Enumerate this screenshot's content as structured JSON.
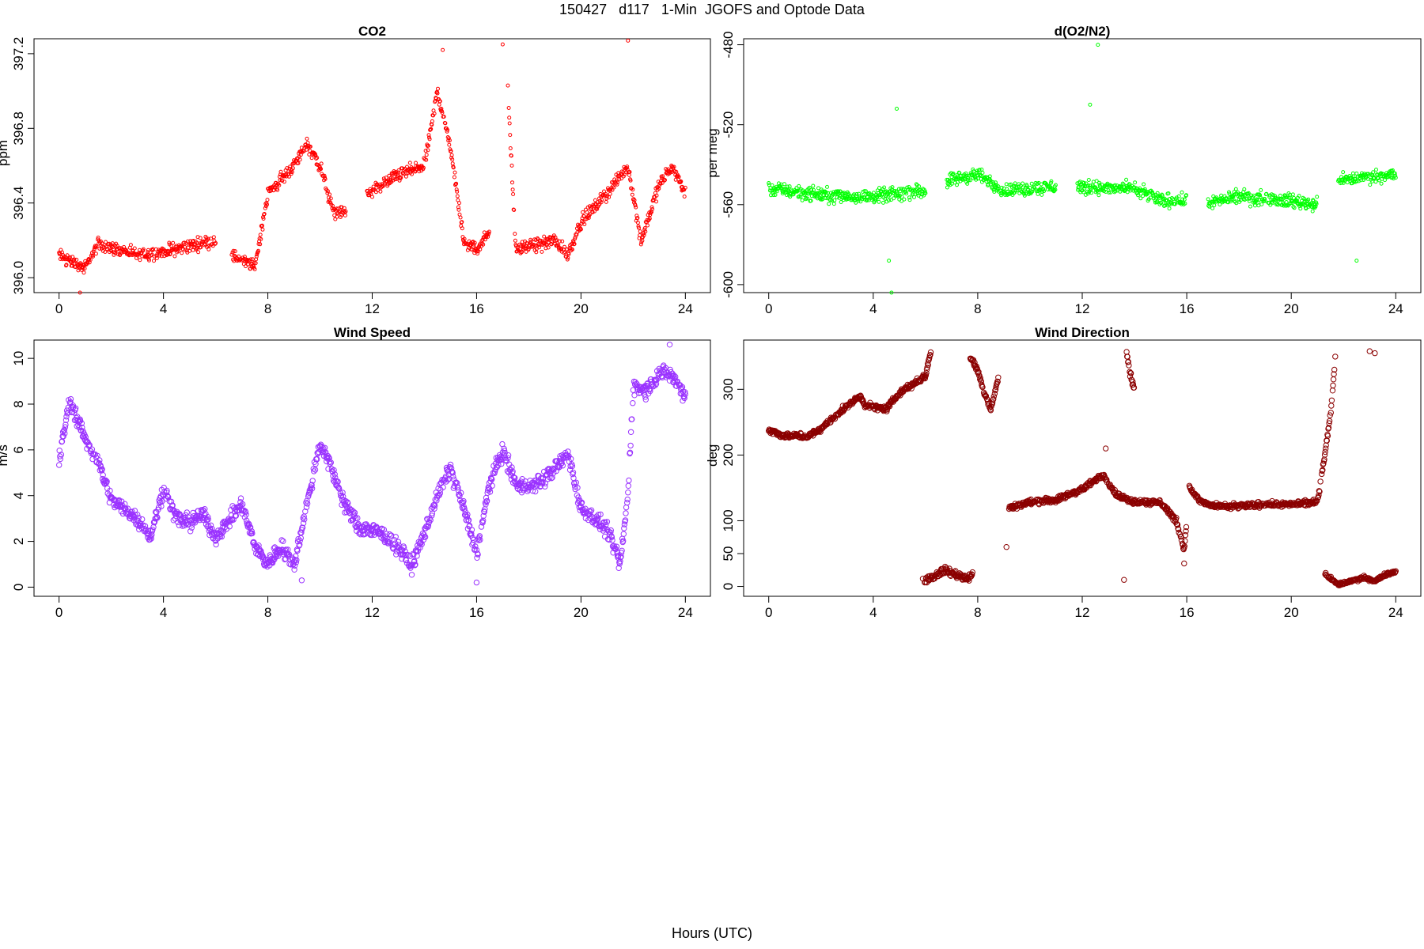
{
  "figure": {
    "title": "150427   d117   1-Min  JGOFS and Optode Data",
    "xlabel": "Hours (UTC)"
  },
  "chart_data": [
    {
      "type": "scatter",
      "title": "CO2",
      "ylabel": "ppm",
      "xlim": [
        -0.96,
        24.96
      ],
      "ylim": [
        395.92,
        397.28
      ],
      "xticks": [
        0,
        4,
        8,
        12,
        16,
        20,
        24
      ],
      "yticks": [
        396.0,
        396.4,
        396.8,
        397.2
      ],
      "ytick_labels": [
        "396.0",
        "396.4",
        "396.8",
        "397.2"
      ],
      "color": "#ff0000",
      "marker_radius": 2,
      "series": [
        {
          "gaps": [
            [
              6.0,
              6.6
            ],
            [
              11.0,
              11.8
            ],
            [
              16.5,
              17.2
            ]
          ],
          "anchors": [
            [
              0.0,
              396.12
            ],
            [
              1.0,
              396.05
            ],
            [
              1.5,
              396.18
            ],
            [
              3.0,
              396.12
            ],
            [
              4.0,
              396.14
            ],
            [
              6.0,
              396.2
            ],
            [
              6.6,
              396.12
            ],
            [
              7.5,
              396.06
            ],
            [
              8.0,
              396.45
            ],
            [
              9.0,
              396.6
            ],
            [
              9.5,
              396.72
            ],
            [
              10.0,
              396.6
            ],
            [
              10.5,
              396.35
            ],
            [
              11.0,
              396.35
            ],
            [
              11.8,
              396.45
            ],
            [
              13.0,
              396.55
            ],
            [
              14.0,
              396.6
            ],
            [
              14.5,
              397.0
            ],
            [
              15.0,
              396.7
            ],
            [
              15.5,
              396.2
            ],
            [
              16.0,
              396.15
            ],
            [
              16.5,
              396.25
            ],
            [
              17.2,
              397.0
            ],
            [
              17.5,
              396.15
            ],
            [
              19.0,
              396.2
            ],
            [
              19.5,
              396.12
            ],
            [
              20.0,
              396.3
            ],
            [
              21.0,
              396.45
            ],
            [
              21.8,
              396.6
            ],
            [
              22.3,
              396.2
            ],
            [
              23.0,
              396.5
            ],
            [
              23.5,
              396.6
            ],
            [
              24.0,
              396.45
            ]
          ],
          "noise": 0.05,
          "spikes": [
            [
              0.8,
              395.92
            ],
            [
              17.0,
              397.25
            ],
            [
              21.8,
              397.27
            ],
            [
              14.7,
              397.22
            ]
          ]
        }
      ]
    },
    {
      "type": "scatter",
      "title": "d(O2/N2)",
      "ylabel": "per meg",
      "xlim": [
        -0.96,
        24.96
      ],
      "ylim": [
        -604,
        -477
      ],
      "xticks": [
        0,
        4,
        8,
        12,
        16,
        20,
        24
      ],
      "yticks": [
        -600,
        -560,
        -520,
        -480
      ],
      "ytick_labels": [
        "-600",
        "-560",
        "-520",
        "-480"
      ],
      "color": "#00ff00",
      "marker_radius": 2,
      "series": [
        {
          "gaps": [
            [
              6.0,
              6.8
            ],
            [
              11.0,
              11.8
            ],
            [
              16.0,
              16.8
            ],
            [
              21.0,
              21.8
            ]
          ],
          "anchors": [
            [
              0.0,
              -552
            ],
            [
              2.0,
              -555
            ],
            [
              4.0,
              -556
            ],
            [
              6.0,
              -553
            ],
            [
              6.8,
              -548
            ],
            [
              8.0,
              -545
            ],
            [
              9.0,
              -553
            ],
            [
              11.0,
              -551
            ],
            [
              11.8,
              -551
            ],
            [
              13.0,
              -552
            ],
            [
              14.0,
              -552
            ],
            [
              15.0,
              -558
            ],
            [
              16.0,
              -558
            ],
            [
              16.8,
              -559
            ],
            [
              18.0,
              -556
            ],
            [
              20.0,
              -558
            ],
            [
              21.0,
              -560
            ],
            [
              21.8,
              -548
            ],
            [
              23.0,
              -546
            ],
            [
              24.0,
              -545
            ]
          ],
          "noise": 5,
          "spikes": [
            [
              4.7,
              -604
            ],
            [
              12.6,
              -480
            ],
            [
              4.9,
              -512
            ],
            [
              12.3,
              -510
            ],
            [
              4.6,
              -588
            ],
            [
              22.5,
              -588
            ]
          ]
        }
      ]
    },
    {
      "type": "scatter",
      "title": "Wind Speed",
      "ylabel": "m/s",
      "xlim": [
        -0.96,
        24.96
      ],
      "ylim": [
        -0.4,
        10.8
      ],
      "xticks": [
        0,
        4,
        8,
        12,
        16,
        20,
        24
      ],
      "yticks": [
        0,
        2,
        4,
        6,
        8,
        10
      ],
      "ytick_labels": [
        "0",
        "2",
        "4",
        "6",
        "8",
        "10"
      ],
      "color": "#9a32ff",
      "marker_radius": 3.2,
      "series": [
        {
          "gaps": [],
          "anchors": [
            [
              0.0,
              5.5
            ],
            [
              0.4,
              8.2
            ],
            [
              1.0,
              6.5
            ],
            [
              1.5,
              5.5
            ],
            [
              2.0,
              3.8
            ],
            [
              3.0,
              3.0
            ],
            [
              3.5,
              2.2
            ],
            [
              4.0,
              4.3
            ],
            [
              4.5,
              3.0
            ],
            [
              5.0,
              2.8
            ],
            [
              5.5,
              3.2
            ],
            [
              6.0,
              2.2
            ],
            [
              6.5,
              2.9
            ],
            [
              7.0,
              3.6
            ],
            [
              7.5,
              1.8
            ],
            [
              8.0,
              1.0
            ],
            [
              8.5,
              1.8
            ],
            [
              9.0,
              1.0
            ],
            [
              9.5,
              3.6
            ],
            [
              10.0,
              6.3
            ],
            [
              10.5,
              5.0
            ],
            [
              11.0,
              3.5
            ],
            [
              11.5,
              2.6
            ],
            [
              12.0,
              2.5
            ],
            [
              12.5,
              2.2
            ],
            [
              13.0,
              1.8
            ],
            [
              13.5,
              0.9
            ],
            [
              14.0,
              2.4
            ],
            [
              14.5,
              4.0
            ],
            [
              15.0,
              5.2
            ],
            [
              15.5,
              3.5
            ],
            [
              16.0,
              1.5
            ],
            [
              16.5,
              4.5
            ],
            [
              17.0,
              6.0
            ],
            [
              17.5,
              4.5
            ],
            [
              18.0,
              4.4
            ],
            [
              18.5,
              4.6
            ],
            [
              19.0,
              5.2
            ],
            [
              19.5,
              5.8
            ],
            [
              20.0,
              3.5
            ],
            [
              20.5,
              3.0
            ],
            [
              21.0,
              2.5
            ],
            [
              21.5,
              1.0
            ],
            [
              21.8,
              4.0
            ],
            [
              22.0,
              8.8
            ],
            [
              22.5,
              8.6
            ],
            [
              23.0,
              9.4
            ],
            [
              23.5,
              9.2
            ],
            [
              24.0,
              8.4
            ]
          ],
          "noise": 0.5,
          "spikes": [
            [
              16.0,
              0.2
            ],
            [
              9.3,
              0.3
            ],
            [
              23.4,
              10.6
            ]
          ]
        }
      ]
    },
    {
      "type": "scatter",
      "title": "Wind Direction",
      "ylabel": "deg",
      "xlim": [
        -0.96,
        24.96
      ],
      "ylim": [
        -15,
        375
      ],
      "xticks": [
        0,
        4,
        8,
        12,
        16,
        20,
        24
      ],
      "yticks": [
        0,
        50,
        100,
        200,
        300
      ],
      "ytick_labels": [
        "0",
        "50",
        "100",
        "200",
        "300"
      ],
      "color": "#8b0000",
      "marker_radius": 3.2,
      "series": [
        {
          "gaps": [
            [
              6.2,
              7.7
            ],
            [
              8.8,
              9.2
            ],
            [
              16.0,
              16.1
            ]
          ],
          "anchors": [
            [
              0.0,
              238
            ],
            [
              0.5,
              230
            ],
            [
              1.5,
              228
            ],
            [
              2.0,
              240
            ],
            [
              3.0,
              275
            ],
            [
              3.5,
              290
            ],
            [
              3.7,
              275
            ],
            [
              4.5,
              270
            ],
            [
              5.0,
              295
            ],
            [
              6.0,
              320
            ],
            [
              6.2,
              358
            ],
            [
              7.7,
              350
            ],
            [
              8.0,
              330
            ],
            [
              8.2,
              300
            ],
            [
              8.5,
              270
            ],
            [
              8.8,
              320
            ],
            [
              9.2,
              120
            ],
            [
              10.0,
              128
            ],
            [
              11.0,
              132
            ],
            [
              12.0,
              148
            ],
            [
              12.8,
              170
            ],
            [
              13.3,
              140
            ],
            [
              13.8,
              130
            ],
            [
              14.5,
              128
            ],
            [
              15.0,
              128
            ],
            [
              15.6,
              100
            ],
            [
              15.9,
              55
            ],
            [
              16.1,
              150
            ],
            [
              16.5,
              130
            ],
            [
              17.0,
              122
            ],
            [
              18.0,
              122
            ],
            [
              19.0,
              125
            ],
            [
              20.0,
              125
            ],
            [
              21.0,
              128
            ],
            [
              21.2,
              180
            ],
            [
              21.5,
              260
            ],
            [
              21.7,
              355
            ]
          ],
          "noise": 6,
          "spikes": [
            [
              13.6,
              10
            ],
            [
              12.9,
              210
            ],
            [
              15.9,
              35
            ],
            [
              9.1,
              60
            ]
          ]
        },
        {
          "gaps": [],
          "anchors": [
            [
              5.9,
              8
            ],
            [
              6.3,
              15
            ],
            [
              6.7,
              25
            ],
            [
              7.2,
              18
            ],
            [
              7.6,
              12
            ],
            [
              7.8,
              20
            ]
          ],
          "noise": 8,
          "spikes": []
        },
        {
          "gaps": [],
          "anchors": [
            [
              21.3,
              18
            ],
            [
              21.8,
              3
            ],
            [
              22.3,
              8
            ],
            [
              22.8,
              14
            ],
            [
              23.2,
              8
            ],
            [
              23.6,
              18
            ],
            [
              24.0,
              22
            ]
          ],
          "noise": 4,
          "spikes": [
            [
              23.0,
              358
            ],
            [
              23.2,
              355
            ]
          ]
        },
        {
          "gaps": [],
          "anchors": [
            [
              13.7,
              360
            ],
            [
              13.8,
              330
            ],
            [
              14.0,
              300
            ],
            [
              14.0,
              270
            ]
          ],
          "noise": 8,
          "spikes": []
        }
      ]
    }
  ]
}
